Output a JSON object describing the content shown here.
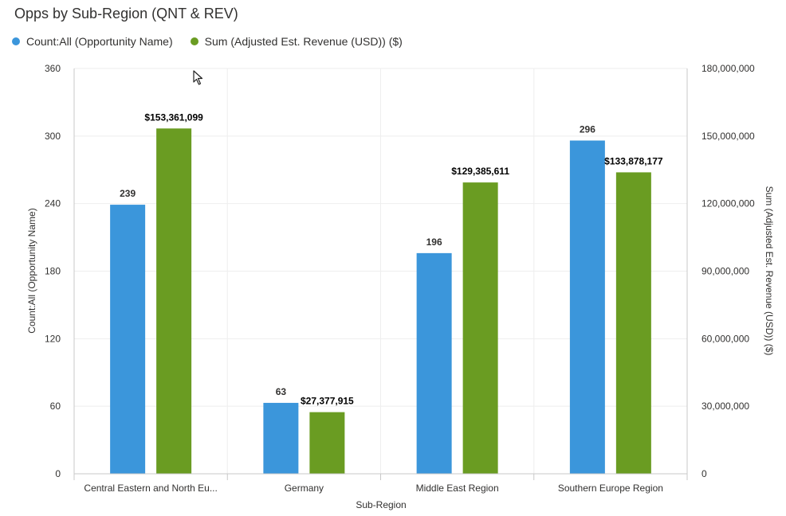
{
  "colors": {
    "count": "#3b96db",
    "revenue": "#6a9c22",
    "grid": "#eeeeee",
    "axis": "#c8c8c8",
    "text": "#323130"
  },
  "chart_data": {
    "type": "bar",
    "title": "Opps by Sub-Region (QNT & REV)",
    "xlabel": "Sub-Region",
    "ylabel": "Count:All (Opportunity Name)",
    "y2label": "Sum (Adjusted Est. Revenue (USD)) ($)",
    "categories": [
      "Central Eastern and North Eu...",
      "Germany",
      "Middle East Region",
      "Southern Europe Region"
    ],
    "series": [
      {
        "name": "Count:All (Opportunity Name)",
        "axis": "left",
        "values": [
          239,
          63,
          196,
          296
        ],
        "labels": [
          "239",
          "63",
          "196",
          "296"
        ]
      },
      {
        "name": "Sum (Adjusted Est. Revenue (USD)) ($)",
        "axis": "right",
        "values": [
          153361099,
          27377915,
          129385611,
          133878177
        ],
        "labels": [
          "$153,361,099",
          "$27,377,915",
          "$129,385,611",
          "$133,878,177"
        ]
      }
    ],
    "ylim": [
      0,
      360
    ],
    "y2lim": [
      0,
      180000000
    ],
    "yticks": [
      "0",
      "60",
      "120",
      "180",
      "240",
      "300",
      "360"
    ],
    "y2ticks": [
      "0",
      "30,000,000",
      "60,000,000",
      "90,000,000",
      "120,000,000",
      "150,000,000",
      "180,000,000"
    ],
    "legend_position": "top-left",
    "grid": true
  }
}
